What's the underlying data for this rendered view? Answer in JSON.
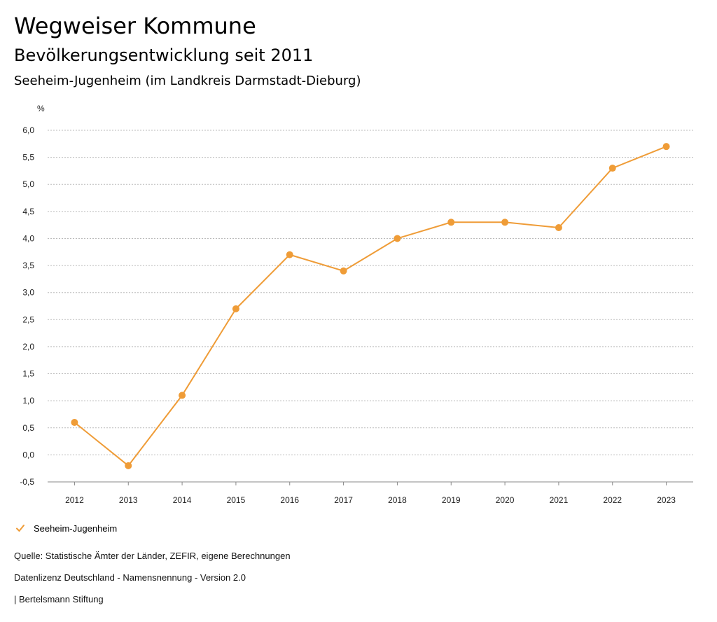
{
  "header": {
    "title": "Wegweiser Kommune",
    "subtitle": "Bevölkerungsentwicklung seit 2011",
    "region": "Seeheim-Jugenheim (im Landkreis Darmstadt-Dieburg)"
  },
  "colors": {
    "series": "#ef9c37",
    "grid": "#bbbbbb",
    "axis": "#888888"
  },
  "chart_data": {
    "type": "line",
    "ylabel": "%",
    "ylim": [
      -0.5,
      6.0
    ],
    "yticks": [
      "6,0",
      "5,5",
      "5,0",
      "4,5",
      "4,0",
      "3,5",
      "3,0",
      "2,5",
      "2,0",
      "1,5",
      "1,0",
      "0,5",
      "0,0",
      "-0,5"
    ],
    "ytick_values": [
      6.0,
      5.5,
      5.0,
      4.5,
      4.0,
      3.5,
      3.0,
      2.5,
      2.0,
      1.5,
      1.0,
      0.5,
      0.0,
      -0.5
    ],
    "categories": [
      "2012",
      "2013",
      "2014",
      "2015",
      "2016",
      "2017",
      "2018",
      "2019",
      "2020",
      "2021",
      "2022",
      "2023"
    ],
    "series": [
      {
        "name": "Seeheim-Jugenheim",
        "values": [
          0.6,
          -0.2,
          1.1,
          2.7,
          3.7,
          3.4,
          4.0,
          4.3,
          4.3,
          4.2,
          5.3,
          5.7
        ]
      }
    ],
    "grid": true,
    "legend": "bottom-left"
  },
  "footer": {
    "source": "Quelle: Statistische Ämter der Länder, ZEFIR, eigene Berechnungen",
    "license": "Datenlizenz Deutschland - Namensnennung - Version 2.0",
    "publisher": "| Bertelsmann Stiftung"
  }
}
